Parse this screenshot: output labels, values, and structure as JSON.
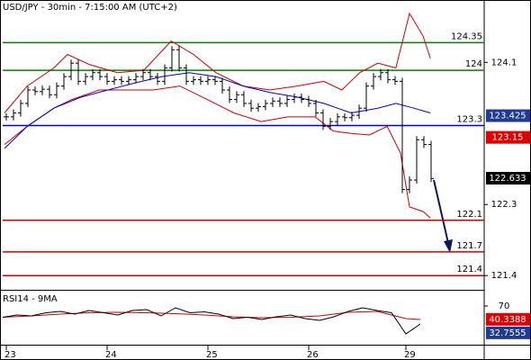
{
  "chart_data": {
    "type": "ohlc",
    "title": "USD/JPY - 30min - 7:15:00 AM (UTC+2)",
    "xlim": [
      0,
      60
    ],
    "xticks": [
      {
        "value": 0.5,
        "label": "23"
      },
      {
        "value": 14.5,
        "label": "24"
      },
      {
        "value": 28.5,
        "label": "25"
      },
      {
        "value": 42.5,
        "label": "26"
      },
      {
        "value": 56,
        "label": "29"
      }
    ],
    "ylim": [
      121.22,
      124.89
    ],
    "yticks": [
      124.1,
      122.3,
      121.4
    ],
    "price": {
      "color": "#000000",
      "values": [
        123.41,
        123.46,
        123.58,
        123.75,
        123.73,
        123.76,
        123.69,
        123.8,
        123.92,
        124.09,
        123.86,
        123.92,
        123.97,
        123.92,
        123.86,
        123.88,
        123.86,
        123.88,
        123.92,
        123.97,
        123.92,
        123.86,
        124.03,
        124.26,
        124.03,
        123.86,
        123.88,
        123.86,
        123.88,
        123.86,
        123.75,
        123.63,
        123.69,
        123.58,
        123.52,
        123.54,
        123.58,
        123.61,
        123.58,
        123.63,
        123.66,
        123.63,
        123.58,
        123.46,
        123.29,
        123.35,
        123.41,
        123.4,
        123.43,
        123.52,
        123.8,
        123.92,
        123.97,
        123.88,
        123.86,
        122.49,
        122.61,
        123.12,
        123.06,
        122.63
      ]
    },
    "upper_band": {
      "color": "#cc0000",
      "x": [
        0.25,
        3.4,
        7.1,
        9,
        12.1,
        15.9,
        19.6,
        23.4,
        26.5,
        29.6,
        33.4,
        37.1,
        40.9,
        44.6,
        47.1,
        49.6,
        52.1,
        54.6,
        56.5,
        58.4,
        59.4
      ],
      "values": [
        123.46,
        123.8,
        124.03,
        124.2,
        124.07,
        123.97,
        124.0,
        124.37,
        124.2,
        123.97,
        123.8,
        123.75,
        123.8,
        123.86,
        123.75,
        123.97,
        124.09,
        124.03,
        124.72,
        124.43,
        124.15
      ]
    },
    "lower_band": {
      "color": "#cc0000",
      "x": [
        0.25,
        3.4,
        7.1,
        9.6,
        13.4,
        17.1,
        20.9,
        24.6,
        28.4,
        32.1,
        35.9,
        39.6,
        43.4,
        45.9,
        48.4,
        50.9,
        53.4,
        55.25,
        56.5,
        58.4,
        59.4
      ],
      "values": [
        123.06,
        123.29,
        123.52,
        123.63,
        123.75,
        123.75,
        123.75,
        123.8,
        123.63,
        123.46,
        123.35,
        123.41,
        123.41,
        123.23,
        123.2,
        123.18,
        123.29,
        122.95,
        122.27,
        122.21,
        122.13
      ]
    },
    "moving_average": {
      "color": "#0000cc",
      "x": [
        0.25,
        3.4,
        7.1,
        10.9,
        14.6,
        18.4,
        22.1,
        25.9,
        29.6,
        33.4,
        37.1,
        40.9,
        44.6,
        48.4,
        52.1,
        54.6,
        57.1,
        59.4
      ],
      "values": [
        123.01,
        123.29,
        123.52,
        123.66,
        123.75,
        123.84,
        123.92,
        123.97,
        123.92,
        123.8,
        123.72,
        123.66,
        123.58,
        123.46,
        123.52,
        123.58,
        123.52,
        123.46
      ]
    },
    "levels": [
      {
        "value": 124.35,
        "color": "#008000"
      },
      {
        "value": 124,
        "color": "#008000"
      },
      {
        "value": 123.3,
        "color": "#0000cc"
      },
      {
        "value": 122.1,
        "color": "#cc0000"
      },
      {
        "value": 121.7,
        "color": "#cc0000"
      },
      {
        "value": 121.4,
        "color": "#cc0000"
      }
    ],
    "price_tags": [
      {
        "value": 123.425,
        "color": "#1f3a93"
      },
      {
        "value": 123.15,
        "color": "#dd0000"
      },
      {
        "value": 122.633,
        "color": "#000000"
      }
    ],
    "rsi": {
      "title": "RSI14 - 9MA",
      "ylim": [
        -16,
        100
      ],
      "yticks": [
        70
      ],
      "line": {
        "color": "#000000",
        "x": [
          0,
          2,
          4,
          6,
          8,
          10,
          12,
          14,
          16,
          18,
          20,
          22,
          24,
          26,
          28,
          30,
          32,
          34,
          36,
          38,
          40,
          42,
          44,
          46,
          48,
          50,
          52,
          54,
          56,
          58
        ],
        "values": [
          45,
          50,
          48,
          55,
          58,
          52,
          60,
          55,
          50,
          60,
          62,
          48,
          66,
          55,
          57,
          52,
          42,
          45,
          40,
          46,
          50,
          42,
          38,
          46,
          58,
          66,
          60,
          55,
          8,
          30
        ]
      },
      "ma": {
        "color": "#cc0000",
        "x": [
          0,
          4,
          8,
          12,
          16,
          20,
          24,
          28,
          32,
          36,
          40,
          44,
          48,
          52,
          56,
          58
        ],
        "values": [
          45,
          48,
          52,
          55,
          56,
          55,
          53,
          50,
          46,
          44,
          45,
          48,
          56,
          58,
          42,
          40
        ]
      },
      "tags": [
        {
          "value": 40.3388,
          "color": "#dd0000"
        },
        {
          "value": 32.7555,
          "color": "#1f3a93"
        }
      ]
    }
  }
}
